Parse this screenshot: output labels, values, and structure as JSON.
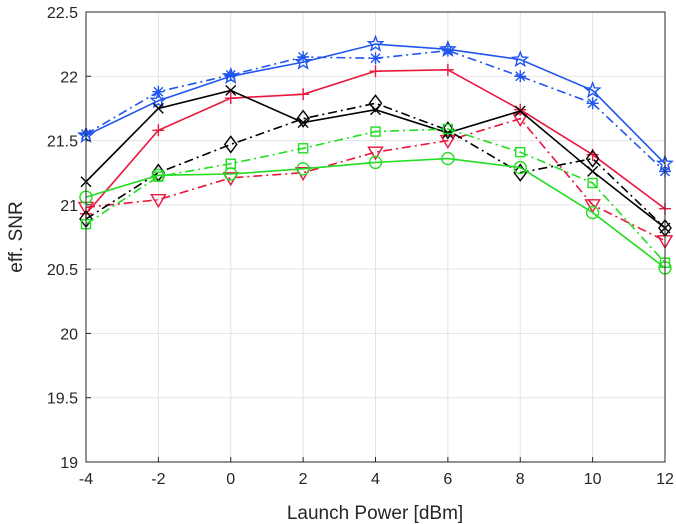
{
  "chart_data": {
    "type": "line",
    "title": "",
    "xlabel": "Launch Power [dBm]",
    "ylabel": "eff. SNR",
    "xlim": [
      -4,
      12
    ],
    "ylim": [
      19,
      22.5
    ],
    "grid": true,
    "xticks": [
      -4,
      -2,
      0,
      2,
      4,
      6,
      8,
      10,
      12
    ],
    "xtick_labels": [
      "-4",
      "-2",
      "0",
      "2",
      "4",
      "6",
      "8",
      "10",
      "12"
    ],
    "yticks": [
      19,
      19.5,
      20,
      20.5,
      21,
      21.5,
      22,
      22.5
    ],
    "ytick_labels": [
      "19",
      "19.5",
      "20",
      "20.5",
      "21",
      "21.5",
      "22",
      "22.5"
    ],
    "x": [
      -4,
      -2,
      0,
      2,
      4,
      6,
      8,
      10,
      12
    ],
    "series": [
      {
        "color": "#1f55f0",
        "line": "solid",
        "marker": "hexagram",
        "values": [
          21.54,
          21.81,
          22.0,
          22.11,
          22.25,
          22.21,
          22.13,
          21.89,
          21.32
        ]
      },
      {
        "color": "#1f55f0",
        "line": "dashdot",
        "marker": "asterisk",
        "values": [
          21.55,
          21.88,
          22.01,
          22.15,
          22.14,
          22.2,
          22.0,
          21.79,
          21.26
        ]
      },
      {
        "color": "#e8173c",
        "line": "solid",
        "marker": "plus",
        "values": [
          20.93,
          21.58,
          21.83,
          21.86,
          22.04,
          22.05,
          21.74,
          21.39,
          20.97
        ]
      },
      {
        "color": "#e8173c",
        "line": "dashdot",
        "marker": "triangle-down",
        "values": [
          20.98,
          21.04,
          21.21,
          21.25,
          21.41,
          21.5,
          21.67,
          21.0,
          20.72
        ]
      },
      {
        "color": "#000000",
        "line": "solid",
        "marker": "x",
        "values": [
          21.18,
          21.75,
          21.89,
          21.64,
          21.74,
          21.56,
          21.73,
          21.26,
          20.82
        ]
      },
      {
        "color": "#000000",
        "line": "dashdot",
        "marker": "diamond",
        "values": [
          20.89,
          21.25,
          21.47,
          21.67,
          21.79,
          21.58,
          21.25,
          21.36,
          20.82
        ]
      },
      {
        "color": "#22dd22",
        "line": "solid",
        "marker": "circle",
        "values": [
          21.06,
          21.23,
          21.24,
          21.28,
          21.33,
          21.36,
          21.29,
          20.94,
          20.51
        ]
      },
      {
        "color": "#22dd22",
        "line": "dashdot",
        "marker": "square",
        "values": [
          20.85,
          21.22,
          21.32,
          21.44,
          21.57,
          21.59,
          21.41,
          21.17,
          20.55
        ]
      }
    ]
  }
}
